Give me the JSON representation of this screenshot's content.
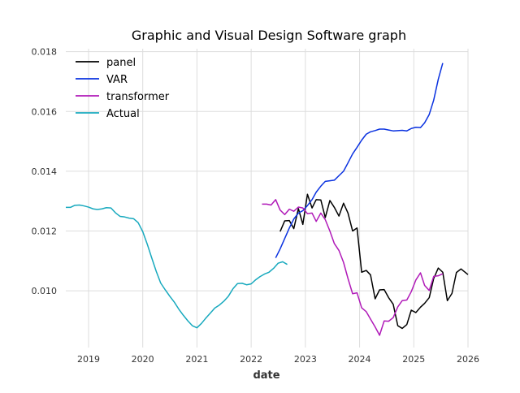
{
  "chart_data": {
    "type": "line",
    "title": "Graphic and Visual Design Software graph",
    "xlabel": "date",
    "ylabel": "",
    "xlim": [
      "2018-08-01",
      "2026-01-01"
    ],
    "ylim": [
      0.0081,
      0.0181
    ],
    "grid": true,
    "legend_position": "top-left",
    "x_ticks": [
      "2019",
      "2020",
      "2021",
      "2022",
      "2023",
      "2024",
      "2025",
      "2026"
    ],
    "y_ticks": [
      "0.010",
      "0.012",
      "0.014",
      "0.016",
      "0.018"
    ],
    "y_tick_values": [
      0.01,
      0.012,
      0.014,
      0.016,
      0.018
    ],
    "series": [
      {
        "name": "panel",
        "color": "#000000",
        "points": [
          [
            "2022-07-15",
            0.01198
          ],
          [
            "2022-08-15",
            0.01234
          ],
          [
            "2022-09-15",
            0.01235
          ],
          [
            "2022-10-15",
            0.01208
          ],
          [
            "2022-11-15",
            0.01275
          ],
          [
            "2022-12-15",
            0.01222
          ],
          [
            "2023-01-15",
            0.01323
          ],
          [
            "2023-02-15",
            0.01277
          ],
          [
            "2023-03-15",
            0.01305
          ],
          [
            "2023-04-15",
            0.01304
          ],
          [
            "2023-05-15",
            0.01245
          ],
          [
            "2023-06-15",
            0.01302
          ],
          [
            "2023-07-15",
            0.01279
          ],
          [
            "2023-08-15",
            0.0125
          ],
          [
            "2023-09-15",
            0.01293
          ],
          [
            "2023-10-15",
            0.0126
          ],
          [
            "2023-11-15",
            0.012
          ],
          [
            "2023-12-15",
            0.0121
          ],
          [
            "2024-01-15",
            0.01062
          ],
          [
            "2024-02-15",
            0.01068
          ],
          [
            "2024-03-15",
            0.01053
          ],
          [
            "2024-04-15",
            0.00973
          ],
          [
            "2024-05-15",
            0.01003
          ],
          [
            "2024-06-15",
            0.01004
          ],
          [
            "2024-07-15",
            0.00977
          ],
          [
            "2024-08-15",
            0.00955
          ],
          [
            "2024-09-15",
            0.00883
          ],
          [
            "2024-10-15",
            0.00874
          ],
          [
            "2024-11-15",
            0.00887
          ],
          [
            "2024-12-15",
            0.00935
          ],
          [
            "2025-01-15",
            0.00927
          ],
          [
            "2025-02-15",
            0.00945
          ],
          [
            "2025-03-15",
            0.00958
          ],
          [
            "2025-04-15",
            0.00977
          ],
          [
            "2025-05-15",
            0.01041
          ],
          [
            "2025-06-15",
            0.01076
          ],
          [
            "2025-07-15",
            0.01062
          ],
          [
            "2025-08-15",
            0.00967
          ],
          [
            "2025-09-15",
            0.00991
          ],
          [
            "2025-10-15",
            0.01061
          ],
          [
            "2025-11-15",
            0.01073
          ],
          [
            "2026-01-01",
            0.01054
          ]
        ]
      },
      {
        "name": "VAR",
        "color": "#0a32e0",
        "points": [
          [
            "2022-06-15",
            0.0111
          ],
          [
            "2022-07-15",
            0.0114
          ],
          [
            "2022-08-15",
            0.01175
          ],
          [
            "2022-09-15",
            0.0121
          ],
          [
            "2022-10-15",
            0.0124
          ],
          [
            "2022-11-15",
            0.0126
          ],
          [
            "2022-12-15",
            0.01268
          ],
          [
            "2023-01-15",
            0.01285
          ],
          [
            "2023-02-15",
            0.01305
          ],
          [
            "2023-03-15",
            0.0133
          ],
          [
            "2023-04-15",
            0.0135
          ],
          [
            "2023-05-15",
            0.01366
          ],
          [
            "2023-06-15",
            0.01368
          ],
          [
            "2023-07-15",
            0.0137
          ],
          [
            "2023-08-15",
            0.01385
          ],
          [
            "2023-09-15",
            0.014
          ],
          [
            "2023-10-15",
            0.01428
          ],
          [
            "2023-11-15",
            0.01458
          ],
          [
            "2023-12-15",
            0.0148
          ],
          [
            "2024-01-15",
            0.01504
          ],
          [
            "2024-02-15",
            0.01524
          ],
          [
            "2024-03-15",
            0.01532
          ],
          [
            "2024-04-15",
            0.01536
          ],
          [
            "2024-05-15",
            0.01541
          ],
          [
            "2024-06-15",
            0.01541
          ],
          [
            "2024-07-15",
            0.01538
          ],
          [
            "2024-08-15",
            0.01535
          ],
          [
            "2024-09-15",
            0.01536
          ],
          [
            "2024-10-15",
            0.01537
          ],
          [
            "2024-11-15",
            0.01535
          ],
          [
            "2024-12-15",
            0.01543
          ],
          [
            "2025-01-15",
            0.01547
          ],
          [
            "2025-02-15",
            0.01546
          ],
          [
            "2025-03-15",
            0.01562
          ],
          [
            "2025-04-15",
            0.0159
          ],
          [
            "2025-05-15",
            0.01638
          ],
          [
            "2025-06-15",
            0.01708
          ],
          [
            "2025-07-15",
            0.01762
          ]
        ]
      },
      {
        "name": "transformer",
        "color": "#b01ab8",
        "points": [
          [
            "2022-03-15",
            0.0129
          ],
          [
            "2022-04-15",
            0.0129
          ],
          [
            "2022-05-15",
            0.01287
          ],
          [
            "2022-06-15",
            0.01305
          ],
          [
            "2022-07-15",
            0.0127
          ],
          [
            "2022-08-15",
            0.01255
          ],
          [
            "2022-09-15",
            0.01273
          ],
          [
            "2022-10-15",
            0.01266
          ],
          [
            "2022-11-15",
            0.0128
          ],
          [
            "2022-12-15",
            0.01277
          ],
          [
            "2023-01-15",
            0.01258
          ],
          [
            "2023-02-15",
            0.0126
          ],
          [
            "2023-03-15",
            0.01232
          ],
          [
            "2023-04-15",
            0.0126
          ],
          [
            "2023-05-15",
            0.01238
          ],
          [
            "2023-06-15",
            0.012
          ],
          [
            "2023-07-15",
            0.01158
          ],
          [
            "2023-08-15",
            0.01135
          ],
          [
            "2023-09-15",
            0.01095
          ],
          [
            "2023-10-15",
            0.01041
          ],
          [
            "2023-11-15",
            0.0099
          ],
          [
            "2023-12-15",
            0.00993
          ],
          [
            "2024-01-15",
            0.00943
          ],
          [
            "2024-02-15",
            0.0093
          ],
          [
            "2024-03-15",
            0.00905
          ],
          [
            "2024-04-15",
            0.00879
          ],
          [
            "2024-05-15",
            0.00851
          ],
          [
            "2024-06-15",
            0.00899
          ],
          [
            "2024-07-15",
            0.00898
          ],
          [
            "2024-08-15",
            0.0091
          ],
          [
            "2024-09-15",
            0.00946
          ],
          [
            "2024-10-15",
            0.00967
          ],
          [
            "2024-11-15",
            0.00969
          ],
          [
            "2024-12-15",
            0.00997
          ],
          [
            "2025-01-15",
            0.01036
          ],
          [
            "2025-02-15",
            0.0106
          ],
          [
            "2025-03-15",
            0.01018
          ],
          [
            "2025-04-15",
            0.01001
          ],
          [
            "2025-05-15",
            0.01048
          ],
          [
            "2025-06-15",
            0.0105
          ],
          [
            "2025-07-15",
            0.01057
          ]
        ]
      },
      {
        "name": "Actual",
        "color": "#17a9be",
        "points": [
          [
            "2018-08-01",
            0.01279
          ],
          [
            "2018-09-01",
            0.01279
          ],
          [
            "2018-10-01",
            0.01286
          ],
          [
            "2018-11-01",
            0.01287
          ],
          [
            "2018-12-01",
            0.01284
          ],
          [
            "2019-01-01",
            0.0128
          ],
          [
            "2019-02-01",
            0.01274
          ],
          [
            "2019-03-01",
            0.01272
          ],
          [
            "2019-04-01",
            0.01274
          ],
          [
            "2019-05-01",
            0.01278
          ],
          [
            "2019-06-01",
            0.01277
          ],
          [
            "2019-07-01",
            0.01261
          ],
          [
            "2019-08-01",
            0.01249
          ],
          [
            "2019-09-01",
            0.01247
          ],
          [
            "2019-10-01",
            0.01243
          ],
          [
            "2019-11-01",
            0.01241
          ],
          [
            "2019-12-01",
            0.01228
          ],
          [
            "2020-01-01",
            0.01198
          ],
          [
            "2020-02-01",
            0.01155
          ],
          [
            "2020-03-01",
            0.01111
          ],
          [
            "2020-04-01",
            0.01065
          ],
          [
            "2020-05-01",
            0.01026
          ],
          [
            "2020-06-01",
            0.01003
          ],
          [
            "2020-07-01",
            0.00982
          ],
          [
            "2020-08-01",
            0.00962
          ],
          [
            "2020-09-01",
            0.00938
          ],
          [
            "2020-10-01",
            0.00918
          ],
          [
            "2020-11-01",
            0.00899
          ],
          [
            "2020-12-01",
            0.00883
          ],
          [
            "2021-01-01",
            0.00876
          ],
          [
            "2021-02-01",
            0.00891
          ],
          [
            "2021-03-01",
            0.00908
          ],
          [
            "2021-04-01",
            0.00925
          ],
          [
            "2021-05-01",
            0.00942
          ],
          [
            "2021-06-01",
            0.00952
          ],
          [
            "2021-07-01",
            0.00965
          ],
          [
            "2021-08-01",
            0.00982
          ],
          [
            "2021-09-01",
            0.01007
          ],
          [
            "2021-10-01",
            0.01024
          ],
          [
            "2021-11-01",
            0.01025
          ],
          [
            "2021-12-01",
            0.0102
          ],
          [
            "2022-01-01",
            0.01023
          ],
          [
            "2022-02-01",
            0.01037
          ],
          [
            "2022-03-01",
            0.01047
          ],
          [
            "2022-04-01",
            0.01056
          ],
          [
            "2022-05-01",
            0.01062
          ],
          [
            "2022-06-01",
            0.01075
          ],
          [
            "2022-07-01",
            0.01092
          ],
          [
            "2022-08-01",
            0.01097
          ],
          [
            "2022-09-01",
            0.01088
          ]
        ]
      }
    ]
  }
}
